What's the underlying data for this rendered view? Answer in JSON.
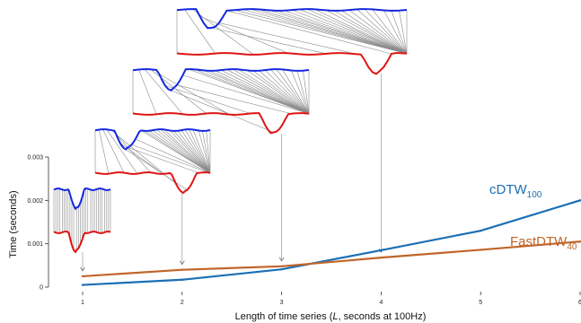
{
  "chart_data": {
    "type": "line",
    "title": "",
    "xlabel": {
      "prefix": "Length of time series (",
      "italic": "L",
      "suffix": ", seconds at 100Hz)"
    },
    "ylabel": "Time (seconds)",
    "xlim": [
      1,
      6
    ],
    "ylim": [
      0,
      0.003
    ],
    "x_ticks": [
      1,
      2,
      3,
      4,
      5,
      6
    ],
    "x_tick_labels": [
      "1",
      "2",
      "3",
      "4",
      "5",
      "6"
    ],
    "y_ticks": [
      0,
      0.001,
      0.002,
      0.003
    ],
    "y_tick_labels": [
      "0",
      "0.001",
      "0.002",
      "0.003"
    ],
    "x": [
      1,
      2,
      3,
      4,
      5,
      6
    ],
    "series": [
      {
        "name": "cDTW",
        "subscript": "100",
        "color": "#1a6fb5",
        "values": [
          5e-05,
          0.00017,
          0.00041,
          0.00085,
          0.0013,
          0.002
        ]
      },
      {
        "name": "FastDTW",
        "subscript": "40",
        "color": "#c0652a",
        "values": [
          0.00025,
          0.0004,
          0.00048,
          0.00068,
          0.00086,
          0.00105
        ]
      }
    ],
    "grid": false,
    "legend": "inline labels",
    "annotations": {
      "description_inset_count": 4,
      "inset_colors": {
        "top": "#1428e0",
        "bottom": "#e01414",
        "warp": "#8a8a8a"
      }
    }
  }
}
